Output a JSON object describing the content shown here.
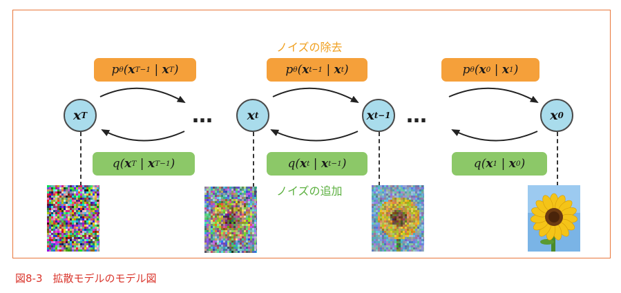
{
  "diagram": {
    "denoise_label": "ノイズの除去",
    "noise_add_label": "ノイズの追加",
    "dots": "…",
    "nodes": {
      "xT": {
        "base": "x",
        "sub": "T"
      },
      "xt": {
        "base": "x",
        "sub": "t"
      },
      "xt1": {
        "base": "x",
        "sub": "t−1"
      },
      "x0": {
        "base": "x",
        "sub": "0"
      }
    },
    "reverse_labels": [
      {
        "pre": "p",
        "theta": "θ",
        "a_base": "x",
        "a_sub": "T−1",
        "b_base": "x",
        "b_sub": "T"
      },
      {
        "pre": "p",
        "theta": "θ",
        "a_base": "x",
        "a_sub": "t−1",
        "b_base": "x",
        "b_sub": "t"
      },
      {
        "pre": "p",
        "theta": "θ",
        "a_base": "x",
        "a_sub": "0",
        "b_base": "x",
        "b_sub": "1"
      }
    ],
    "forward_labels": [
      {
        "pre": "q",
        "a_base": "x",
        "a_sub": "T",
        "b_base": "x",
        "b_sub": "T−1"
      },
      {
        "pre": "q",
        "a_base": "x",
        "a_sub": "t",
        "b_base": "x",
        "b_sub": "t−1"
      },
      {
        "pre": "q",
        "a_base": "x",
        "a_sub": "1",
        "b_base": "x",
        "b_sub": "0"
      }
    ]
  },
  "colors": {
    "frame": "#e8763a",
    "reverse_box": "#f5a03a",
    "forward_box": "#8cc868",
    "denoise_text": "#f0a020",
    "noise_text": "#5cb040",
    "node_fill": "#a9dcec",
    "caption": "#d9342b"
  },
  "caption": "図8-3　拡散モデルのモデル図"
}
